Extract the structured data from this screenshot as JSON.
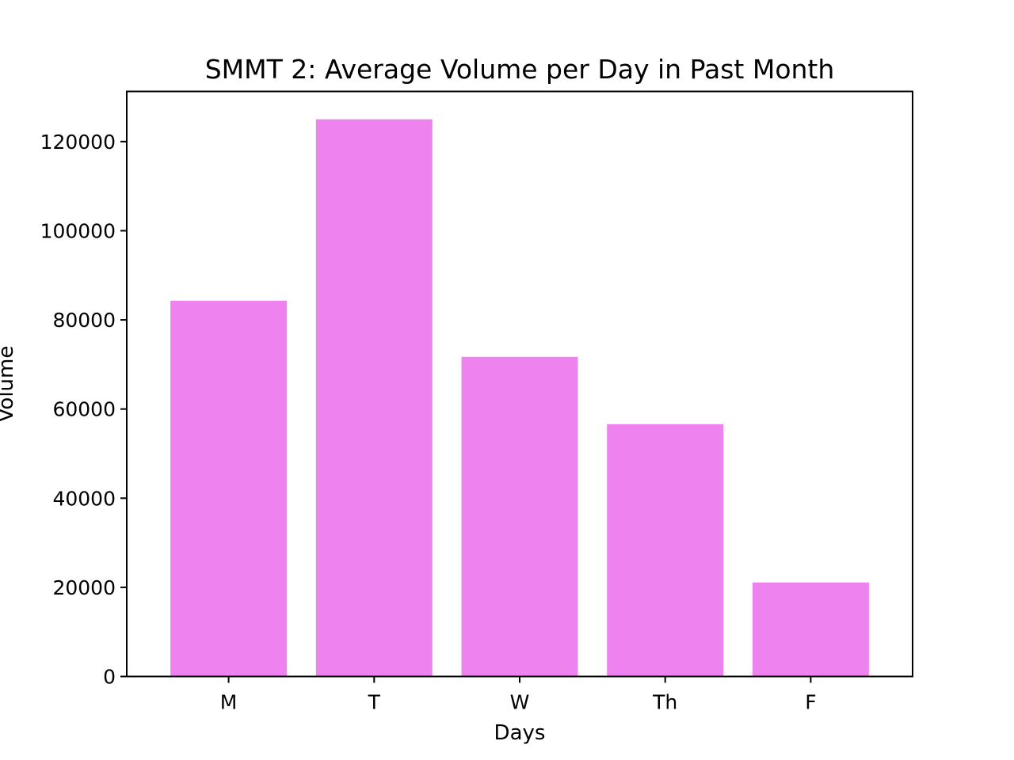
{
  "colors": {
    "bar": "#ee82ee",
    "axis": "#000000",
    "background": "#ffffff"
  },
  "chart_data": {
    "type": "bar",
    "title": "SMMT 2: Average Volume per Day in Past Month",
    "xlabel": "Days",
    "ylabel": "Volume",
    "categories": [
      "M",
      "T",
      "W",
      "Th",
      "F"
    ],
    "values": [
      84300,
      125000,
      71700,
      56600,
      21100
    ],
    "ylim": [
      0,
      131250
    ],
    "yticks": [
      0,
      20000,
      40000,
      60000,
      80000,
      100000,
      120000
    ],
    "ytick_labels": [
      "0",
      "20000",
      "40000",
      "60000",
      "80000",
      "100000",
      "120000"
    ],
    "grid": false,
    "legend": "none"
  }
}
